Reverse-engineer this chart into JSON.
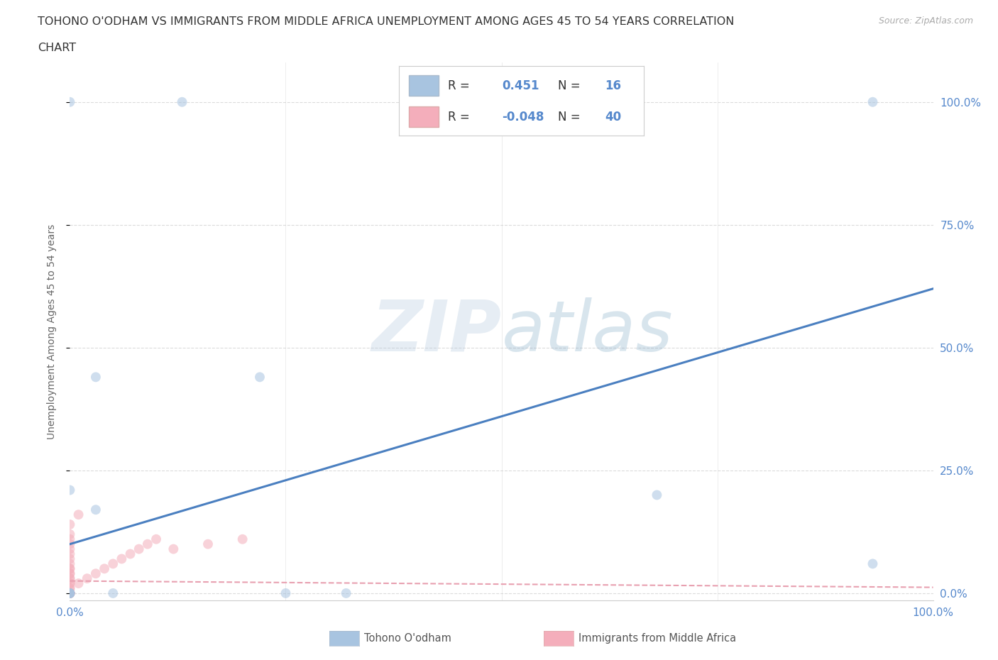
{
  "title_line1": "TOHONO O'ODHAM VS IMMIGRANTS FROM MIDDLE AFRICA UNEMPLOYMENT AMONG AGES 45 TO 54 YEARS CORRELATION",
  "title_line2": "CHART",
  "source_text": "Source: ZipAtlas.com",
  "ylabel": "Unemployment Among Ages 45 to 54 years",
  "watermark": "ZIPatlas",
  "blue_color": "#A8C4E0",
  "pink_color": "#F4AEBB",
  "blue_line_color": "#4A7FC0",
  "pink_line_color": "#E8A0B0",
  "blue_scatter_x": [
    0.13,
    0.0,
    0.03,
    0.0,
    0.0,
    0.03,
    0.0,
    0.22,
    0.68,
    0.05,
    0.32,
    0.93,
    0.93,
    0.25,
    0.0,
    0.0
  ],
  "blue_scatter_y": [
    1.0,
    1.0,
    0.17,
    0.0,
    0.0,
    0.44,
    0.21,
    0.44,
    0.2,
    0.0,
    0.0,
    1.0,
    0.06,
    0.0,
    0.0,
    0.0
  ],
  "pink_scatter_x": [
    0.0,
    0.0,
    0.0,
    0.0,
    0.0,
    0.0,
    0.0,
    0.0,
    0.0,
    0.0,
    0.0,
    0.0,
    0.0,
    0.0,
    0.0,
    0.0,
    0.0,
    0.0,
    0.0,
    0.0,
    0.01,
    0.01,
    0.02,
    0.03,
    0.04,
    0.05,
    0.06,
    0.07,
    0.08,
    0.09,
    0.1,
    0.12,
    0.16,
    0.2,
    0.0,
    0.0,
    0.0,
    0.0,
    0.0,
    0.0
  ],
  "pink_scatter_y": [
    0.0,
    0.0,
    0.01,
    0.01,
    0.02,
    0.02,
    0.03,
    0.03,
    0.04,
    0.04,
    0.05,
    0.05,
    0.06,
    0.07,
    0.08,
    0.09,
    0.1,
    0.11,
    0.12,
    0.14,
    0.16,
    0.02,
    0.03,
    0.04,
    0.05,
    0.06,
    0.07,
    0.08,
    0.09,
    0.1,
    0.11,
    0.09,
    0.1,
    0.11,
    0.0,
    0.0,
    0.0,
    0.0,
    0.0,
    0.0
  ],
  "blue_trendline_x": [
    0.0,
    1.0
  ],
  "blue_trendline_y": [
    0.1,
    0.62
  ],
  "pink_trendline_x": [
    0.0,
    1.0
  ],
  "pink_trendline_y": [
    0.025,
    0.012
  ],
  "xmin": 0.0,
  "xmax": 1.0,
  "ymin": -0.015,
  "ymax": 1.08,
  "ytick_vals": [
    0.0,
    0.25,
    0.5,
    0.75,
    1.0
  ],
  "right_ytick_labels": [
    "0.0%",
    "25.0%",
    "50.0%",
    "75.0%",
    "100.0%"
  ],
  "xtick_vals": [
    0.0,
    1.0
  ],
  "xtick_labels": [
    "0.0%",
    "100.0%"
  ],
  "grid_color": "#CCCCCC",
  "tick_color": "#5588CC",
  "background_color": "#FFFFFF",
  "legend_blue_label": "Tohono O'odham",
  "legend_pink_label": "Immigrants from Middle Africa",
  "legend_r1_r": "0.451",
  "legend_r1_n": "16",
  "legend_r2_r": "-0.048",
  "legend_r2_n": "40",
  "marker_size": 100,
  "marker_alpha": 0.55,
  "watermark_color": "#C8D8EA",
  "watermark_alpha": 0.4
}
